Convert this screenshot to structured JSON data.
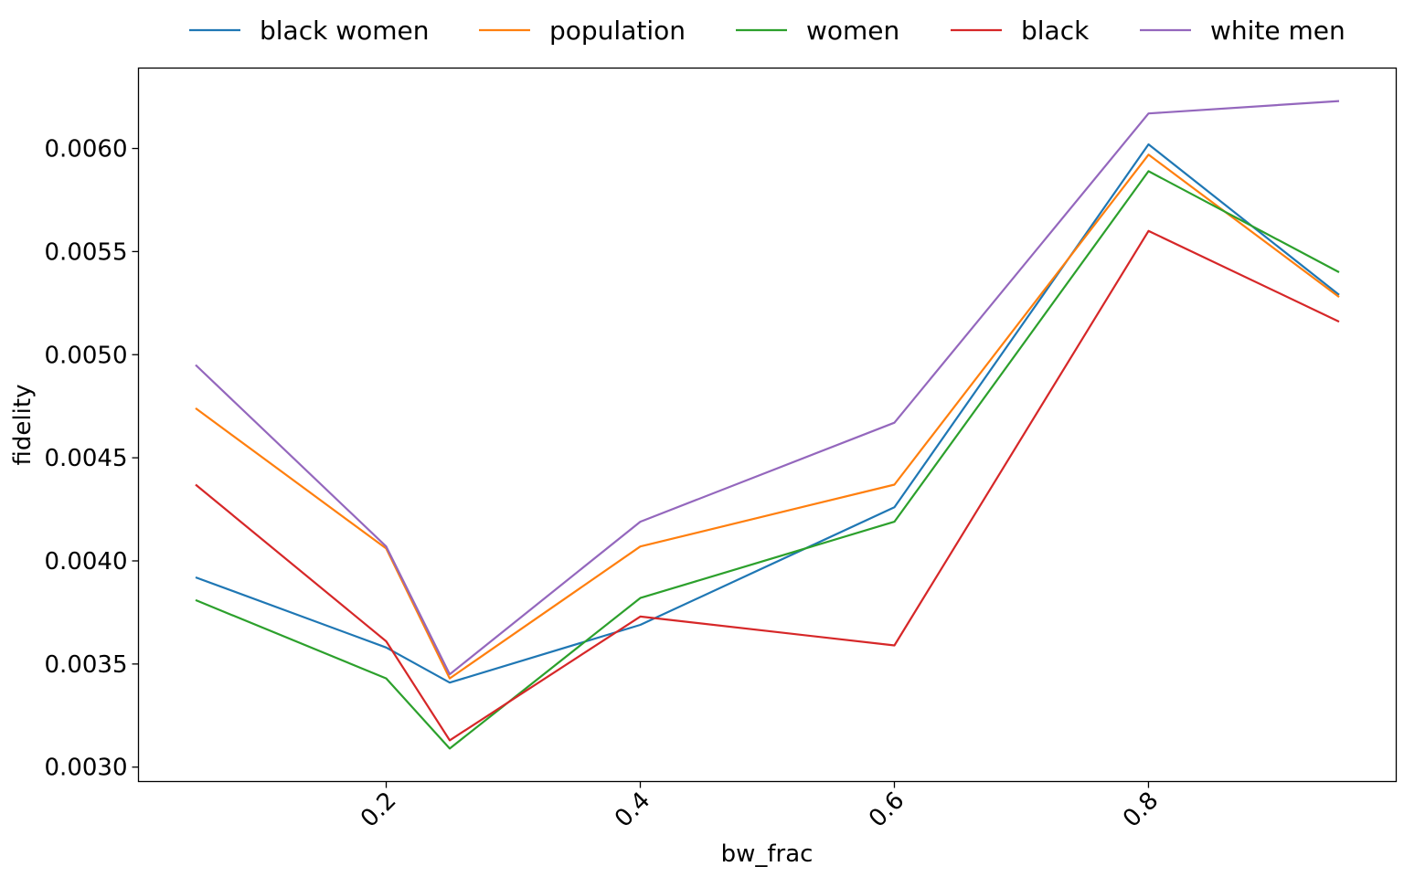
{
  "chart_data": {
    "type": "line",
    "title": "",
    "xlabel": "bw_frac",
    "ylabel": "fidelity",
    "x": [
      0.05,
      0.2,
      0.25,
      0.4,
      0.6,
      0.8,
      0.95
    ],
    "xlim": [
      0.005,
      0.995
    ],
    "ylim": [
      0.00293,
      0.00639
    ],
    "x_ticks": [
      0.2,
      0.4,
      0.6,
      0.8
    ],
    "x_tick_labels": [
      "0.2",
      "0.4",
      "0.6",
      "0.8"
    ],
    "y_ticks": [
      0.003,
      0.0035,
      0.004,
      0.0045,
      0.005,
      0.0055,
      0.006
    ],
    "y_tick_labels": [
      "0.0030",
      "0.0035",
      "0.0040",
      "0.0045",
      "0.0050",
      "0.0055",
      "0.0060"
    ],
    "legend_position": "top-center",
    "grid": false,
    "series": [
      {
        "name": "black women",
        "color": "#1f77b4",
        "values": [
          0.00392,
          0.00358,
          0.00341,
          0.00369,
          0.00426,
          0.00602,
          0.00529
        ]
      },
      {
        "name": "population",
        "color": "#ff7f0e",
        "values": [
          0.00474,
          0.00406,
          0.00343,
          0.00407,
          0.00437,
          0.00597,
          0.00528
        ]
      },
      {
        "name": "women",
        "color": "#2ca02c",
        "values": [
          0.00381,
          0.00343,
          0.00309,
          0.00382,
          0.00419,
          0.00589,
          0.0054
        ]
      },
      {
        "name": "black",
        "color": "#d62728",
        "values": [
          0.00437,
          0.00361,
          0.00313,
          0.00373,
          0.00359,
          0.0056,
          0.00516
        ]
      },
      {
        "name": "white men",
        "color": "#9467bd",
        "values": [
          0.00495,
          0.00407,
          0.00345,
          0.00419,
          0.00467,
          0.00617,
          0.00623
        ]
      }
    ]
  }
}
